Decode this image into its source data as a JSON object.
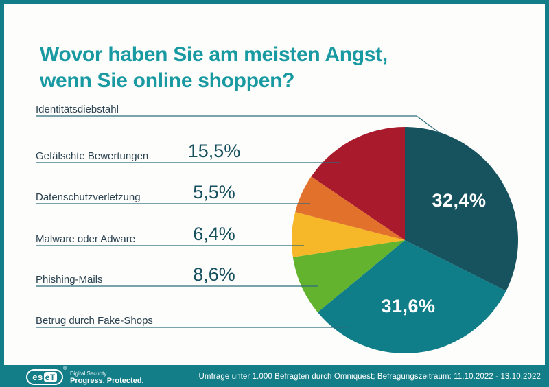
{
  "page": {
    "title_line1": "Wovor haben Sie am meisten Angst,",
    "title_line2": "wenn Sie online shoppen?"
  },
  "colors": {
    "accent_teal": "#199aa2",
    "frame_teal": "#147e88",
    "callout_line": "#2b6b7b",
    "label_text": "#2b4250",
    "percent_text": "#17505f"
  },
  "legend_rows": [
    {
      "label": "Identitätsdiebstahl",
      "pct": ""
    },
    {
      "label": "Gefälschte Bewertungen",
      "pct": "15,5%"
    },
    {
      "label": "Datenschutzverletzung",
      "pct": "5,5%"
    },
    {
      "label": "Malware oder Adware",
      "pct": "6,4%"
    },
    {
      "label": "Phishing-Mails",
      "pct": "8,6%"
    },
    {
      "label": "Betrug durch Fake-Shops",
      "pct": ""
    }
  ],
  "chart_data": {
    "type": "pie",
    "title": "Wovor haben Sie am meisten Angst, wenn Sie online shoppen?",
    "unit": "%",
    "start_angle_deg": 0,
    "direction": "clockwise",
    "legend_position": "left",
    "slices": [
      {
        "label": "Identitätsdiebstahl",
        "value": 32.4,
        "display": "32,4%",
        "color": "#16535e"
      },
      {
        "label": "Betrug durch Fake-Shops",
        "value": 31.6,
        "display": "31,6%",
        "color": "#107e89"
      },
      {
        "label": "Phishing-Mails",
        "value": 8.6,
        "display": "8,6%",
        "color": "#64b32f"
      },
      {
        "label": "Malware oder Adware",
        "value": 6.4,
        "display": "6,4%",
        "color": "#f6b728"
      },
      {
        "label": "Datenschutzverletzung",
        "value": 5.5,
        "display": "5,5%",
        "color": "#e2712c"
      },
      {
        "label": "Gefälschte Bewertungen",
        "value": 15.5,
        "display": "15,5%",
        "color": "#a91b2c"
      }
    ],
    "inner_labels": [
      {
        "text": "32,4%",
        "slice": "Identitätsdiebstahl"
      },
      {
        "text": "31,6%",
        "slice": "Betrug durch Fake-Shops"
      }
    ]
  },
  "footer": {
    "source": "Umfrage unter 1.000 Befragten durch Omniquest; Befragungszeitraum: 11.10.2022 - 13.10.2022",
    "logo_es": "es",
    "logo_et": "eT",
    "logo_registered": "®",
    "tagline_line1": "Digital Security",
    "tagline_line2": "Progress. Protected."
  }
}
